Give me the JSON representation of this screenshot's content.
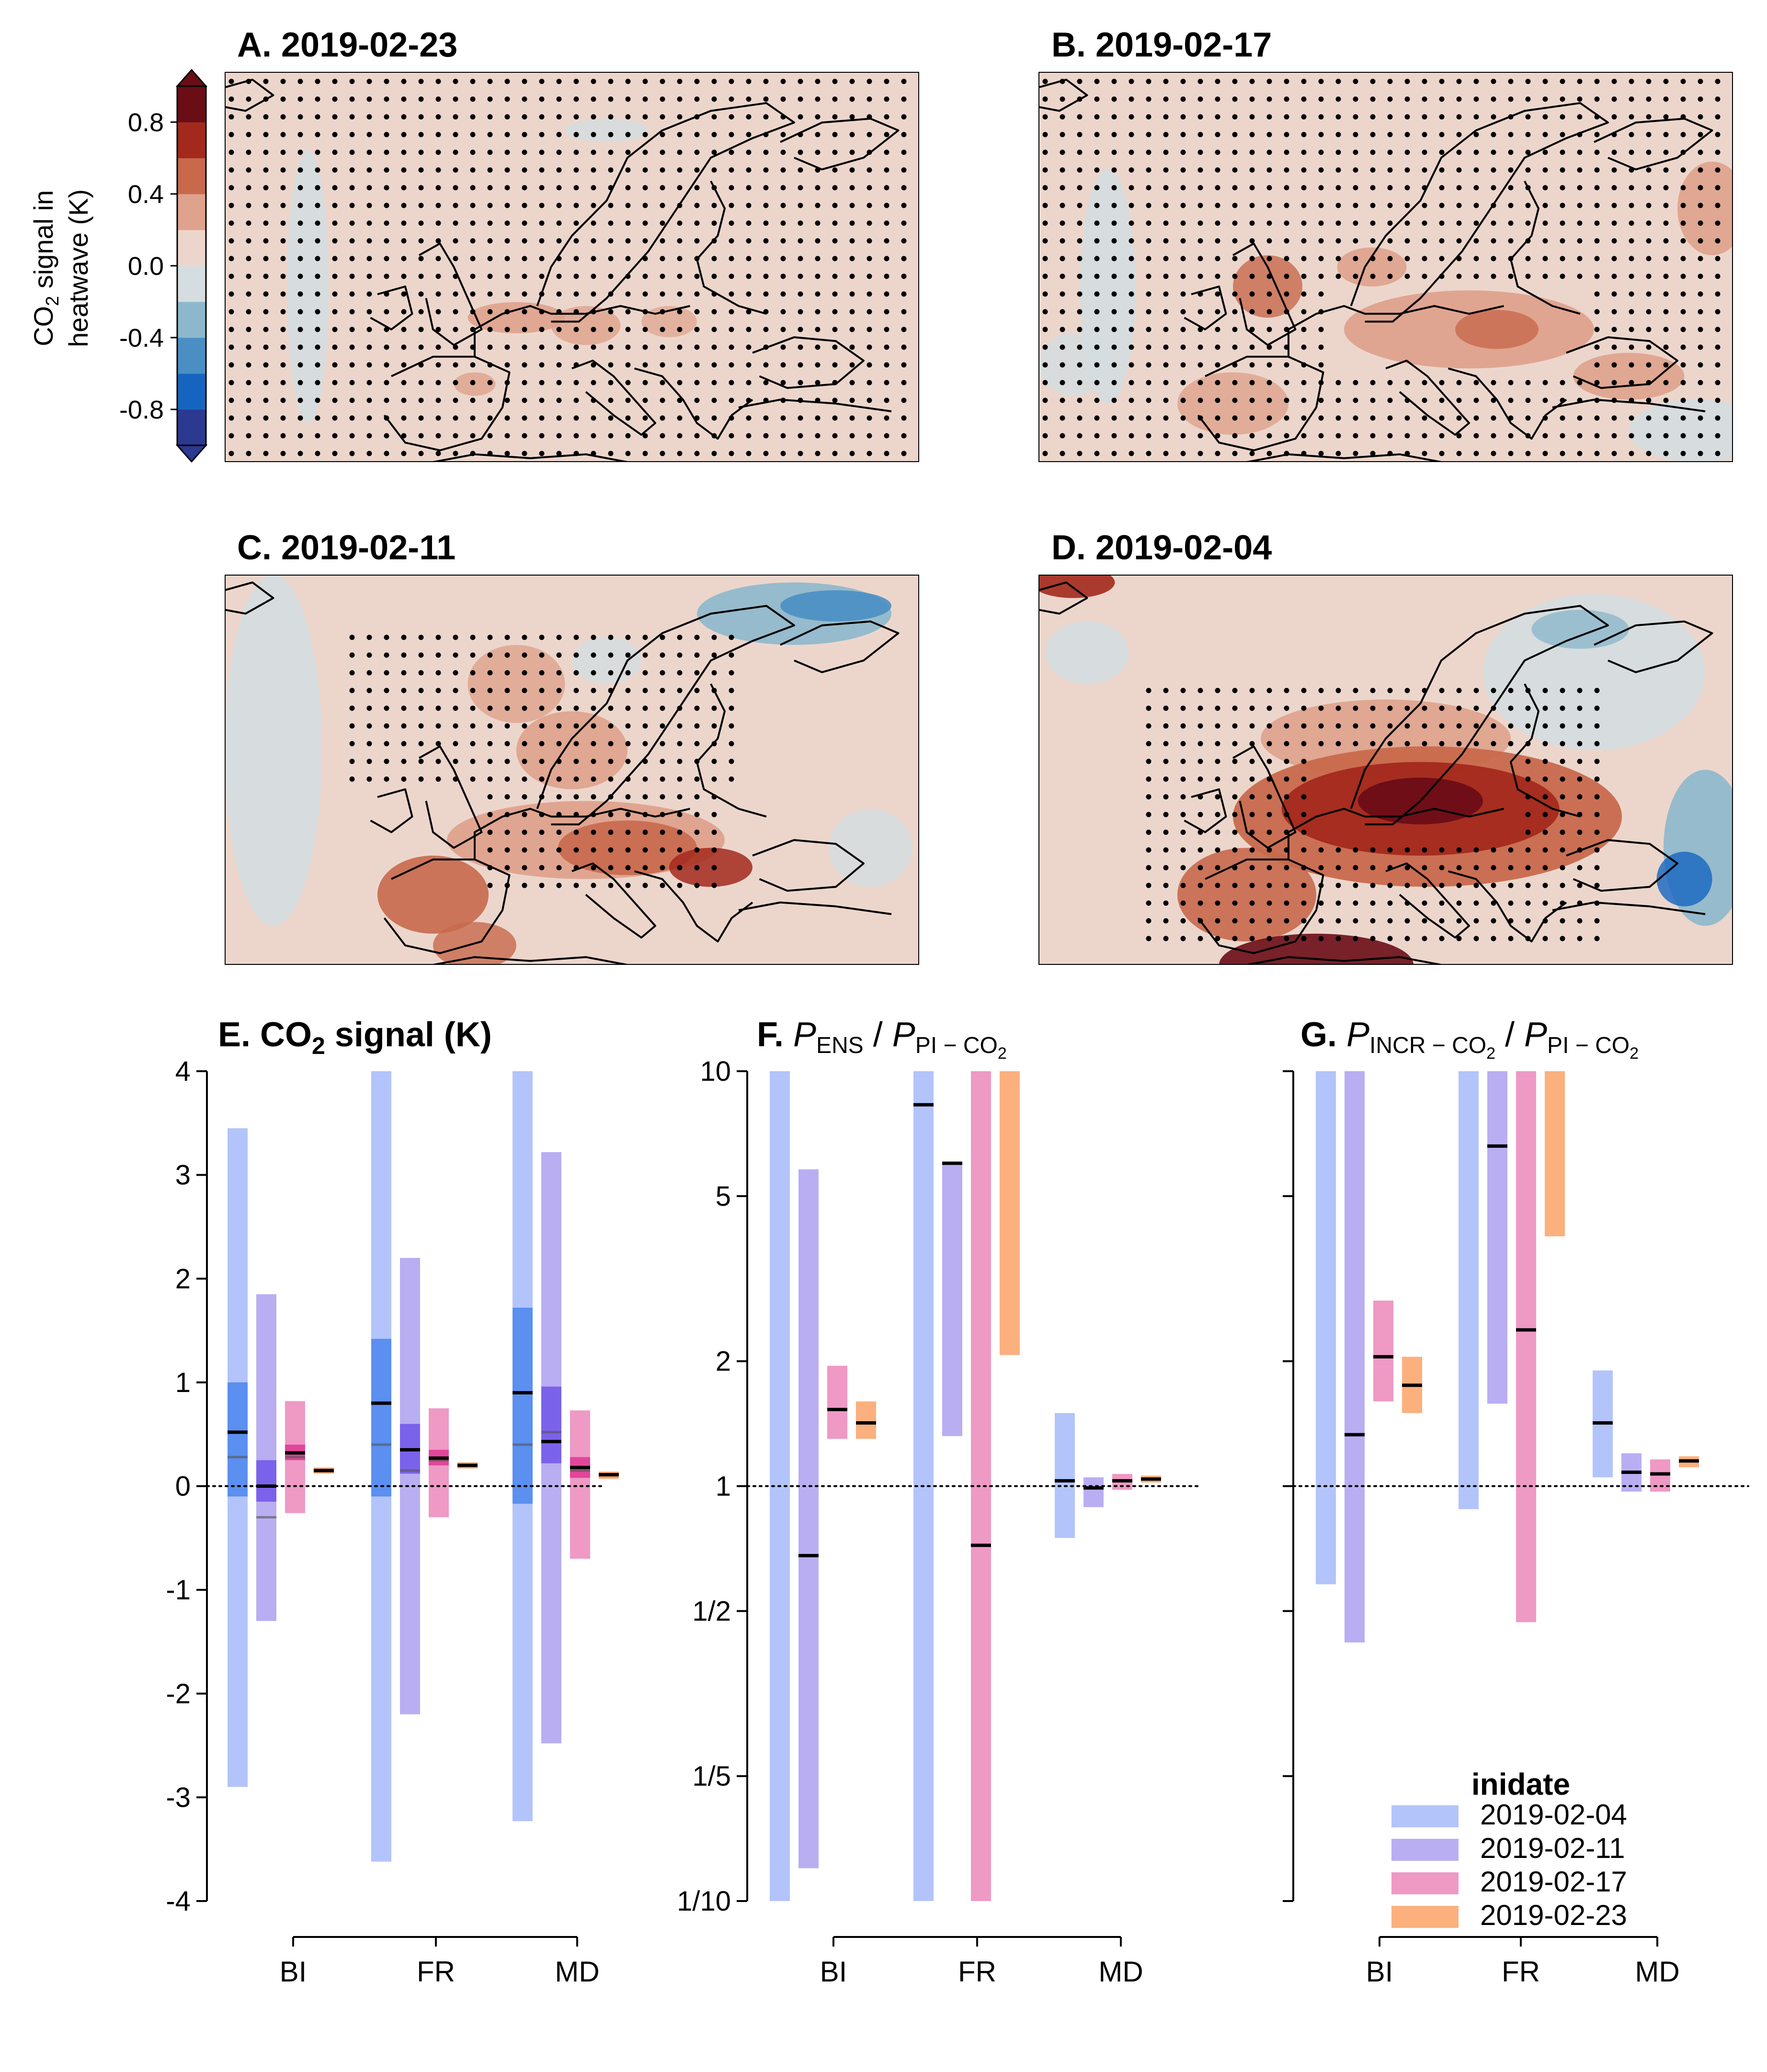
{
  "colorbar": {
    "label_line1": "CO",
    "label_sub": "2",
    "label_line1_rest": " signal in",
    "label_line2": "heatwave (K)",
    "ticks": [
      "0.8",
      "0.4",
      "0.0",
      "-0.4",
      "-0.8"
    ],
    "tick_values": [
      0.8,
      0.4,
      0.0,
      -0.4,
      -0.8
    ],
    "range": [
      -1.0,
      1.0
    ],
    "colors": [
      "#2b3990",
      "#1565c0",
      "#4a8fc4",
      "#8db8cc",
      "#d5dde0",
      "#ecd6cc",
      "#dfa28c",
      "#c8694c",
      "#a3291c",
      "#6b0d17"
    ]
  },
  "maps": [
    {
      "id": "A",
      "title": "A. 2019-02-23"
    },
    {
      "id": "B",
      "title": "B. 2019-02-17"
    },
    {
      "id": "C",
      "title": "C. 2019-02-11"
    },
    {
      "id": "D",
      "title": "D. 2019-02-04"
    }
  ],
  "chart_data": [
    {
      "id": "E",
      "type": "bar",
      "title_prefix": "E. CO",
      "title_sub": "2",
      "title_suffix": " signal (K)",
      "scale": "linear",
      "ylim": [
        -4,
        4
      ],
      "y_ticks": [
        4,
        3,
        2,
        1,
        0,
        -1,
        -2,
        -3,
        -4
      ],
      "y_tick_labels": [
        "4",
        "3",
        "2",
        "1",
        "0",
        "-1",
        "-2",
        "-3",
        "-4"
      ],
      "reference_line": 0,
      "categories": [
        "BI",
        "FR",
        "MD"
      ],
      "series": [
        {
          "name": "2019-02-04",
          "color": "#b3c4fa",
          "inner_color": "#5b8ff0",
          "values": [
            {
              "lo": -2.9,
              "hi": 3.45,
              "inner_lo": -0.1,
              "inner_hi": 1.0,
              "median": 0.52,
              "secondary": 0.28
            },
            {
              "lo": -3.62,
              "hi": 4.0,
              "inner_lo": -0.1,
              "inner_hi": 1.42,
              "median": 0.8,
              "secondary": 0.4
            },
            {
              "lo": -3.23,
              "hi": 4.0,
              "inner_lo": -0.17,
              "inner_hi": 1.72,
              "median": 0.9,
              "secondary": 0.4
            }
          ]
        },
        {
          "name": "2019-02-11",
          "color": "#baaef2",
          "inner_color": "#7b62ea",
          "values": [
            {
              "lo": -1.3,
              "hi": 1.85,
              "inner_lo": -0.15,
              "inner_hi": 0.25,
              "median": 0.0,
              "secondary": -0.3
            },
            {
              "lo": -2.2,
              "hi": 2.2,
              "inner_lo": 0.12,
              "inner_hi": 0.6,
              "median": 0.35,
              "secondary": 0.15
            },
            {
              "lo": -2.48,
              "hi": 3.22,
              "inner_lo": 0.22,
              "inner_hi": 0.96,
              "median": 0.43,
              "secondary": 0.52
            }
          ]
        },
        {
          "name": "2019-02-17",
          "color": "#ef99c5",
          "inner_color": "#e2469a",
          "values": [
            {
              "lo": -0.26,
              "hi": 0.82,
              "inner_lo": 0.25,
              "inner_hi": 0.4,
              "median": 0.32,
              "secondary": 0.28
            },
            {
              "lo": -0.3,
              "hi": 0.75,
              "inner_lo": 0.2,
              "inner_hi": 0.35,
              "median": 0.27,
              "secondary": 0.25
            },
            {
              "lo": -0.7,
              "hi": 0.73,
              "inner_lo": 0.08,
              "inner_hi": 0.28,
              "median": 0.18,
              "secondary": 0.15
            }
          ]
        },
        {
          "name": "2019-02-23",
          "color": "#fbb07e",
          "inner_color": "#f39a5a",
          "values": [
            {
              "lo": 0.12,
              "hi": 0.18,
              "inner_lo": 0.13,
              "inner_hi": 0.17,
              "median": 0.15,
              "secondary": 0.15
            },
            {
              "lo": 0.17,
              "hi": 0.23,
              "inner_lo": 0.18,
              "inner_hi": 0.22,
              "median": 0.2,
              "secondary": 0.2
            },
            {
              "lo": 0.07,
              "hi": 0.14,
              "inner_lo": 0.08,
              "inner_hi": 0.13,
              "median": 0.11,
              "secondary": 0.11
            }
          ]
        }
      ]
    },
    {
      "id": "F",
      "type": "bar",
      "title_prefix": "F. ",
      "title_math": "P_ENS / P_PI-CO2",
      "scale": "log",
      "ylim": [
        0.1,
        10
      ],
      "y_ticks": [
        10,
        5,
        2,
        1,
        0.5,
        0.2,
        0.1
      ],
      "y_tick_labels": [
        "10",
        "5",
        "2",
        "1",
        "1/2",
        "1/5",
        "1/10"
      ],
      "reference_line": 1,
      "categories": [
        "BI",
        "FR",
        "MD"
      ],
      "series": [
        {
          "name": "2019-02-04",
          "color": "#b3c4fa",
          "values": [
            {
              "lo": 0.1,
              "hi": 10,
              "median": null
            },
            {
              "lo": 0.1,
              "hi": 10,
              "median": 8.3
            },
            {
              "lo": 0.75,
              "hi": 1.5,
              "median": 1.03
            }
          ]
        },
        {
          "name": "2019-02-11",
          "color": "#baaef2",
          "values": [
            {
              "lo": 0.12,
              "hi": 5.8,
              "median": 0.68
            },
            {
              "lo": 1.32,
              "hi": 6.0,
              "median": 6.0
            },
            {
              "lo": 0.89,
              "hi": 1.05,
              "median": 0.99
            }
          ]
        },
        {
          "name": "2019-02-17",
          "color": "#ef99c5",
          "values": [
            {
              "lo": 1.3,
              "hi": 1.95,
              "median": 1.53
            },
            {
              "lo": 0.1,
              "hi": 10,
              "median": 0.72
            },
            {
              "lo": 0.98,
              "hi": 1.07,
              "median": 1.03
            }
          ]
        },
        {
          "name": "2019-02-23",
          "color": "#fbb07e",
          "values": [
            {
              "lo": 1.3,
              "hi": 1.6,
              "median": 1.42
            },
            {
              "lo": 2.07,
              "hi": 10,
              "median": null
            },
            {
              "lo": 1.02,
              "hi": 1.06,
              "median": 1.04
            }
          ]
        }
      ]
    },
    {
      "id": "G",
      "type": "bar",
      "title_prefix": "G. ",
      "title_math": "P_INCR-CO2 / P_PI-CO2",
      "scale": "log",
      "ylim": [
        0.1,
        10
      ],
      "y_ticks": [
        10,
        5,
        2,
        1,
        0.5,
        0.2,
        0.1
      ],
      "y_tick_labels": [],
      "reference_line": 1,
      "categories": [
        "BI",
        "FR",
        "MD"
      ],
      "series": [
        {
          "name": "2019-02-04",
          "color": "#b3c4fa",
          "values": [
            {
              "lo": 0.58,
              "hi": 10,
              "median": null
            },
            {
              "lo": 0.88,
              "hi": 10,
              "median": null
            },
            {
              "lo": 1.05,
              "hi": 1.9,
              "median": 1.42
            }
          ]
        },
        {
          "name": "2019-02-11",
          "color": "#baaef2",
          "values": [
            {
              "lo": 0.42,
              "hi": 10,
              "median": 1.33
            },
            {
              "lo": 1.58,
              "hi": 10,
              "median": 6.6
            },
            {
              "lo": 0.97,
              "hi": 1.2,
              "median": 1.08
            }
          ]
        },
        {
          "name": "2019-02-17",
          "color": "#ef99c5",
          "values": [
            {
              "lo": 1.6,
              "hi": 2.8,
              "median": 2.05
            },
            {
              "lo": 0.47,
              "hi": 10,
              "median": 2.38
            },
            {
              "lo": 0.97,
              "hi": 1.16,
              "median": 1.07
            }
          ]
        },
        {
          "name": "2019-02-23",
          "color": "#fbb07e",
          "values": [
            {
              "lo": 1.5,
              "hi": 2.05,
              "median": 1.75
            },
            {
              "lo": 4.0,
              "hi": 10,
              "median": null
            },
            {
              "lo": 1.11,
              "hi": 1.18,
              "median": 1.15
            }
          ]
        }
      ]
    }
  ],
  "legend": {
    "title": "inidate",
    "entries": [
      {
        "label": "2019-02-04",
        "color": "#b3c4fa"
      },
      {
        "label": "2019-02-11",
        "color": "#baaef2"
      },
      {
        "label": "2019-02-17",
        "color": "#ef99c5"
      },
      {
        "label": "2019-02-23",
        "color": "#fbb07e"
      }
    ]
  }
}
